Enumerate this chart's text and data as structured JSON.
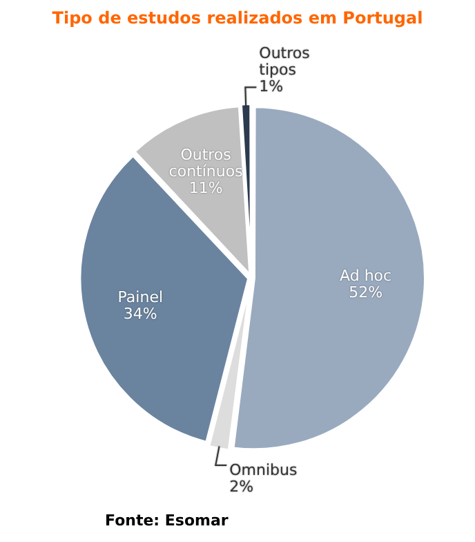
{
  "chart_data": {
    "type": "pie",
    "title": "Tipo de estudos realizados em Portugal",
    "categories": [
      "Ad hoc",
      "Omnibus",
      "Painel",
      "Outros contínuos",
      "Outros tipos"
    ],
    "values": [
      52,
      2,
      34,
      11,
      1
    ],
    "colors": [
      "#99aabf",
      "#dddddd",
      "#6a84a0",
      "#c0c0c0",
      "#2b3a4f"
    ],
    "value_labels": [
      "52%",
      "2%",
      "34%",
      "11%",
      "1%"
    ],
    "annotations": [
      "Fonte: Esomar"
    ]
  }
}
